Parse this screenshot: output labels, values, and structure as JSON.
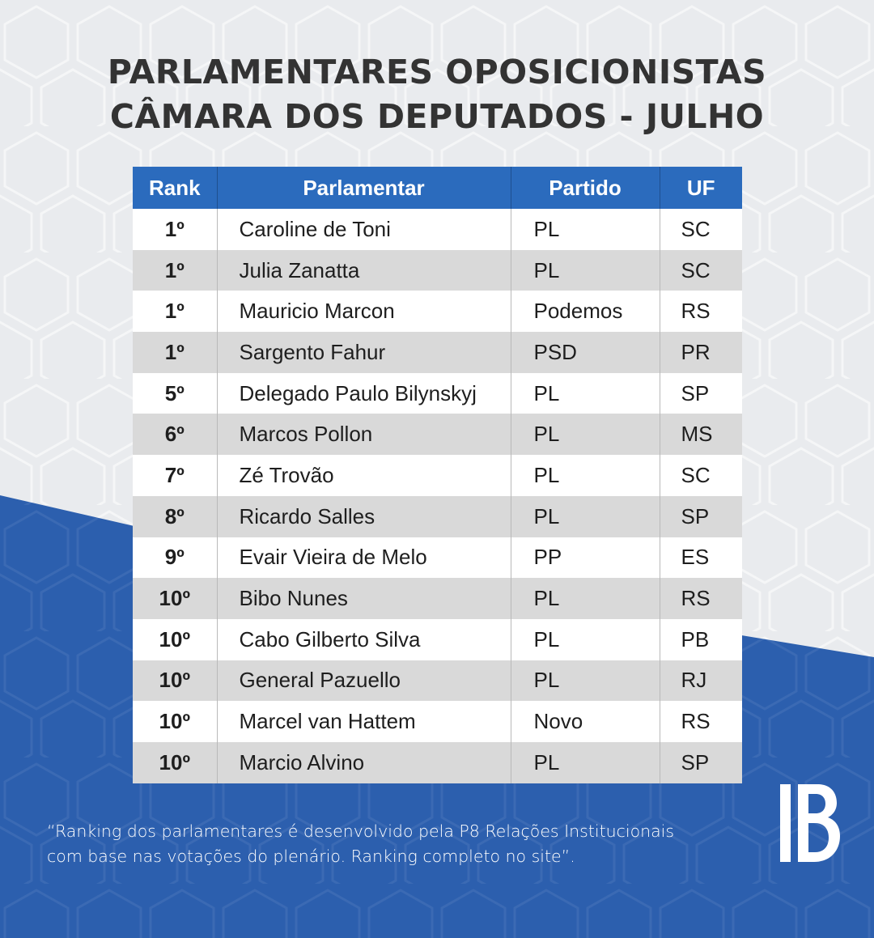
{
  "colors": {
    "background_light": "#e9ebee",
    "background_blue": "#2c5fae",
    "header_blue": "#2b6bbd",
    "row_gray": "#d9d9d9",
    "title_text": "#333333"
  },
  "title": {
    "line1": "PARLAMENTARES OPOSICIONISTAS",
    "line2": "CÂMARA DOS DEPUTADOS - JULHO"
  },
  "table": {
    "headers": [
      "Rank",
      "Parlamentar",
      "Partido",
      "UF"
    ],
    "rows": [
      {
        "rank": "1º",
        "name": "Caroline de Toni",
        "party": "PL",
        "uf": "SC"
      },
      {
        "rank": "1º",
        "name": "Julia Zanatta",
        "party": "PL",
        "uf": "SC"
      },
      {
        "rank": "1º",
        "name": "Mauricio Marcon",
        "party": "Podemos",
        "uf": "RS"
      },
      {
        "rank": "1º",
        "name": "Sargento Fahur",
        "party": "PSD",
        "uf": "PR"
      },
      {
        "rank": "5º",
        "name": "Delegado Paulo Bilynskyj",
        "party": "PL",
        "uf": "SP"
      },
      {
        "rank": "6º",
        "name": "Marcos Pollon",
        "party": "PL",
        "uf": "MS"
      },
      {
        "rank": "7º",
        "name": "Zé Trovão",
        "party": "PL",
        "uf": "SC"
      },
      {
        "rank": "8º",
        "name": "Ricardo Salles",
        "party": "PL",
        "uf": "SP"
      },
      {
        "rank": "9º",
        "name": "Evair Vieira de Melo",
        "party": "PP",
        "uf": "ES"
      },
      {
        "rank": "10º",
        "name": "Bibo Nunes",
        "party": "PL",
        "uf": "RS"
      },
      {
        "rank": "10º",
        "name": "Cabo Gilberto Silva",
        "party": "PL",
        "uf": "PB"
      },
      {
        "rank": "10º",
        "name": "General Pazuello",
        "party": "PL",
        "uf": "RJ"
      },
      {
        "rank": "10º",
        "name": "Marcel van Hattem",
        "party": "Novo",
        "uf": "RS"
      },
      {
        "rank": "10º",
        "name": "Marcio Alvino",
        "party": "PL",
        "uf": "SP"
      }
    ]
  },
  "footnote": {
    "line1": "“Ranking dos parlamentares é desenvolvido pela P8 Relações Institucionais",
    "line2": "com base nas votações do plenário. Ranking completo no site”."
  },
  "logo": {
    "icon": "p8-logo-icon"
  }
}
